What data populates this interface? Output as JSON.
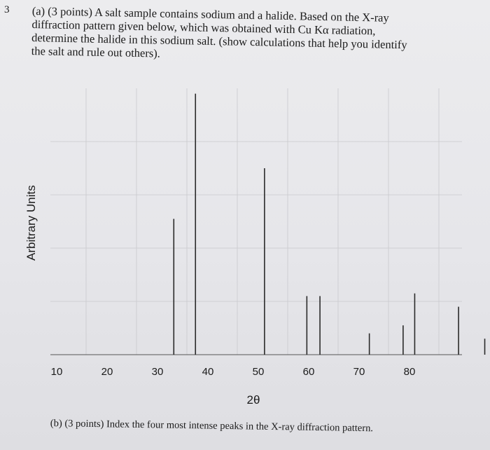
{
  "question": {
    "number": "3",
    "part_a_lines": [
      "(a) (3 points) A salt sample contains sodium and a halide. Based on the X-ray",
      "diffraction pattern given below, which was obtained with Cu Kα radiation,",
      "determine the halide in this sodium salt. (show calculations that help you identify",
      "the salt and rule out others)."
    ],
    "part_b": "(b) (3 points) Index the four most intense peaks in the X-ray diffraction pattern."
  },
  "chart_data": {
    "type": "bar",
    "title": "",
    "xlabel": "2θ",
    "ylabel": "Arbitrary Units",
    "xticks": [
      "10",
      "20",
      "30",
      "40",
      "50",
      "60",
      "70",
      "80"
    ],
    "xlim": [
      5,
      90
    ],
    "ylim": [
      0,
      100
    ],
    "grid": true,
    "peaks": [
      {
        "x": 27.4,
        "y": 51
      },
      {
        "x": 31.7,
        "y": 98
      },
      {
        "x": 45.4,
        "y": 70
      },
      {
        "x": 53.8,
        "y": 22
      },
      {
        "x": 56.4,
        "y": 22
      },
      {
        "x": 66.2,
        "y": 8
      },
      {
        "x": 72.9,
        "y": 11
      },
      {
        "x": 75.2,
        "y": 23
      },
      {
        "x": 83.9,
        "y": 18
      },
      {
        "x": 89.1,
        "y": 6
      }
    ]
  },
  "colors": {
    "peak": "#2a2a2a",
    "grid": "#c9c9cd",
    "axis": "#555555"
  }
}
